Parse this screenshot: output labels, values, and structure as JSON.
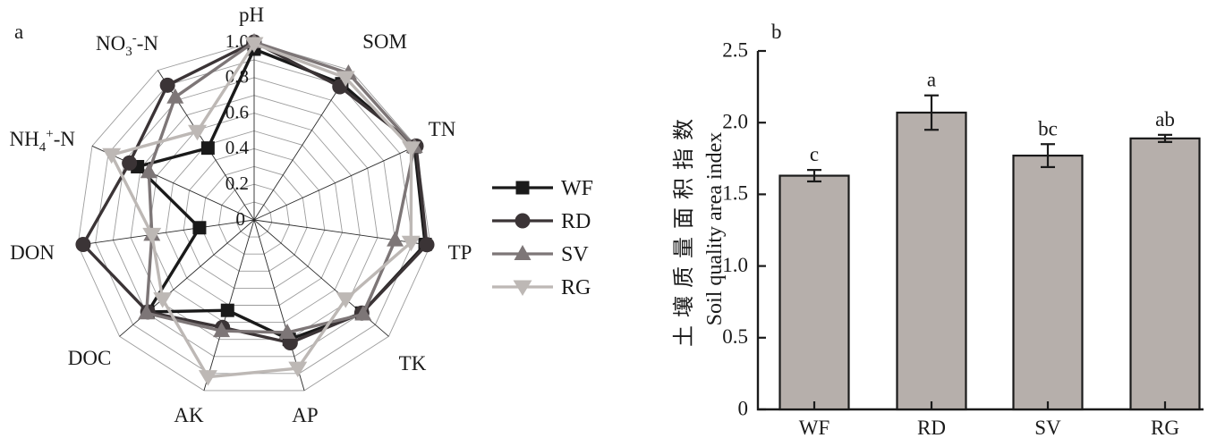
{
  "figure": {
    "background": "#ffffff",
    "grid_color": "#9c9c9c",
    "spoke_color": "#2a2a2a",
    "panel_a_label": "a",
    "panel_b_label": "b"
  },
  "chart_data": [
    {
      "type": "radar",
      "panel_label": "a",
      "axes": [
        "pH",
        "SOM",
        "TN",
        "TP",
        "TK",
        "AP",
        "AK",
        "DOC",
        "DON",
        "NH4+-N",
        "NO3--N"
      ],
      "axis_rich": {
        "NH4+-N": [
          [
            "NH",
            "n"
          ],
          [
            "4",
            "s"
          ],
          [
            "+",
            "p"
          ],
          [
            "-N",
            "n"
          ]
        ],
        "NO3--N": [
          [
            "NO",
            "n"
          ],
          [
            "3",
            "s"
          ],
          [
            "-",
            "p"
          ],
          [
            "-N",
            "n"
          ]
        ]
      },
      "r_ticks": {
        "labels": [
          "0",
          "0.2",
          "0.4",
          "0.6",
          "0.8",
          "1.0"
        ],
        "values": [
          0,
          0.2,
          0.4,
          0.6,
          0.8,
          1.0
        ]
      },
      "r_max": 1.0,
      "grid_rings": 10,
      "legend_position": "right",
      "series": [
        {
          "name": "WF",
          "marker": "square",
          "color": "#1a1a1a",
          "values": [
            0.96,
            0.91,
            0.99,
            0.97,
            0.8,
            0.7,
            0.53,
            0.79,
            0.31,
            0.72,
            0.48
          ]
        },
        {
          "name": "RD",
          "marker": "circle",
          "color": "#3b3436",
          "values": [
            1.0,
            0.89,
            1.0,
            0.98,
            0.8,
            0.72,
            0.63,
            0.79,
            0.97,
            0.77,
            0.9
          ]
        },
        {
          "name": "SV",
          "marker": "triangle-up",
          "color": "#7d7677",
          "values": [
            1.0,
            0.98,
            0.99,
            0.8,
            0.81,
            0.66,
            0.65,
            0.8,
            0.58,
            0.65,
            0.82
          ]
        },
        {
          "name": "RG",
          "marker": "triangle-down",
          "color": "#bdb8b5",
          "values": [
            0.99,
            0.95,
            0.97,
            0.89,
            0.68,
            0.87,
            0.92,
            0.68,
            0.58,
            0.88,
            0.59
          ]
        }
      ]
    },
    {
      "type": "bar",
      "panel_label": "b",
      "categories": [
        "WF",
        "RD",
        "SV",
        "RG"
      ],
      "values": [
        1.63,
        2.07,
        1.77,
        1.89
      ],
      "errors": [
        0.04,
        0.12,
        0.08,
        0.025
      ],
      "sig_letters": [
        "c",
        "a",
        "bc",
        "ab"
      ],
      "ylabel_zh": "土壤质量面积指数",
      "ylabel_en": "Soil quality area index",
      "yticks": [
        "0",
        "0.5",
        "1.0",
        "1.5",
        "2.0",
        "2.5"
      ],
      "ytick_values": [
        0,
        0.5,
        1.0,
        1.5,
        2.0,
        2.5
      ],
      "ylim": [
        0,
        2.5
      ],
      "grid": false,
      "bar_fill": "#b6afab",
      "bar_stroke": "#1a1a1a"
    }
  ]
}
